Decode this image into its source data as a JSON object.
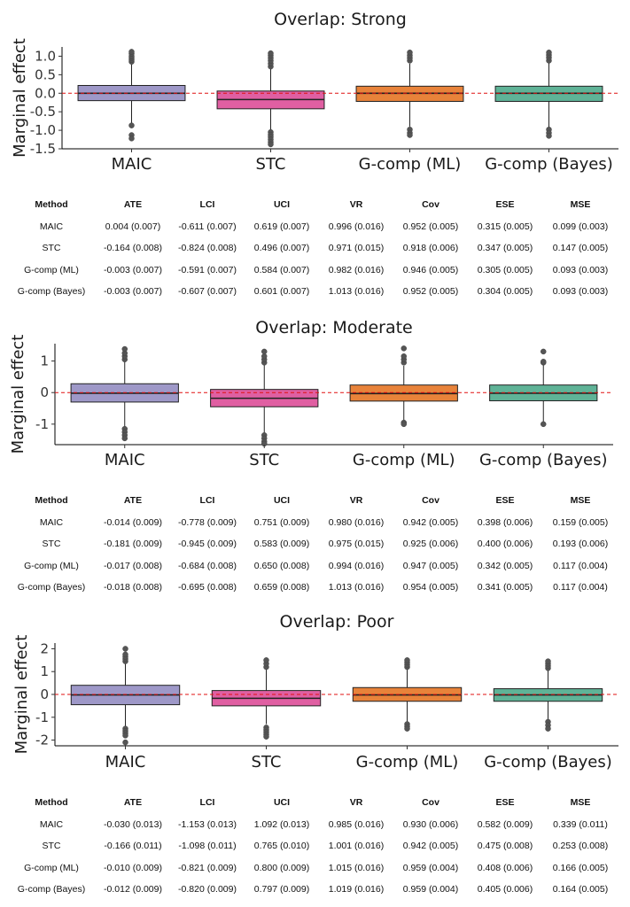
{
  "chart_data": [
    {
      "type": "box",
      "title": "Overlap: Strong",
      "ylabel": "Marginal effect",
      "ylim": [
        -1.5,
        1.25
      ],
      "yticks": [
        "-1.5",
        "-1.0",
        "-0.5",
        "0.0",
        "0.5",
        "1.0"
      ],
      "ytick_values": [
        -1.5,
        -1.0,
        -0.5,
        0.0,
        0.5,
        1.0
      ],
      "reference_line": 0,
      "categories": [
        "MAIC",
        "STC",
        "G-comp (ML)",
        "G-comp (Bayes)"
      ],
      "boxes": [
        {
          "category": "MAIC",
          "whisker_low": -0.82,
          "q1": -0.2,
          "median": 0.0,
          "q3": 0.21,
          "whisker_high": 0.82,
          "outliers": [
            0.85,
            0.9,
            0.95,
            1.0,
            1.07,
            1.12,
            -0.87,
            -1.13,
            -1.22
          ]
        },
        {
          "category": "STC",
          "whisker_low": -1.0,
          "q1": -0.42,
          "median": -0.17,
          "q3": 0.06,
          "whisker_high": 0.68,
          "outliers": [
            0.72,
            0.8,
            0.88,
            0.95,
            1.02,
            1.08,
            -1.05,
            -1.12,
            -1.18,
            -1.25,
            -1.32,
            -1.38
          ]
        },
        {
          "category": "G-comp (ML)",
          "whisker_low": -0.9,
          "q1": -0.22,
          "median": 0.0,
          "q3": 0.19,
          "whisker_high": 0.8,
          "outliers": [
            0.88,
            0.95,
            1.02,
            1.1,
            -0.98,
            -1.07,
            -1.13
          ]
        },
        {
          "category": "G-comp (Bayes)",
          "whisker_low": -0.92,
          "q1": -0.22,
          "median": 0.0,
          "q3": 0.19,
          "whisker_high": 0.82,
          "outliers": [
            0.88,
            0.96,
            1.03,
            1.1,
            -0.98,
            -1.07,
            -1.15
          ]
        }
      ],
      "colors": [
        "#9e98c8",
        "#e05fa2",
        "#e8833a",
        "#5fb397"
      ]
    },
    {
      "type": "box",
      "title": "Overlap: Moderate",
      "ylabel": "Marginal effect",
      "ylim": [
        -1.65,
        1.55
      ],
      "yticks": [
        "-1",
        "0",
        "1"
      ],
      "ytick_values": [
        -1,
        0,
        1
      ],
      "reference_line": 0,
      "categories": [
        "MAIC",
        "STC",
        "G-comp (ML)",
        "G-comp (Bayes)"
      ],
      "boxes": [
        {
          "category": "MAIC",
          "whisker_low": -1.1,
          "q1": -0.3,
          "median": -0.02,
          "q3": 0.28,
          "whisker_high": 1.0,
          "outliers": [
            1.05,
            1.15,
            1.25,
            1.38,
            -1.15,
            -1.25,
            -1.35,
            -1.45
          ]
        },
        {
          "category": "STC",
          "whisker_low": -1.3,
          "q1": -0.45,
          "median": -0.18,
          "q3": 0.1,
          "whisker_high": 0.9,
          "outliers": [
            0.95,
            1.05,
            1.15,
            1.3,
            -1.35,
            -1.45,
            -1.55,
            -1.62
          ]
        },
        {
          "category": "G-comp (ML)",
          "whisker_low": -0.9,
          "q1": -0.27,
          "median": -0.03,
          "q3": 0.24,
          "whisker_high": 0.85,
          "outliers": [
            0.95,
            1.05,
            1.15,
            1.4,
            -0.95,
            -1.0
          ]
        },
        {
          "category": "G-comp (Bayes)",
          "whisker_low": -0.95,
          "q1": -0.26,
          "median": -0.02,
          "q3": 0.24,
          "whisker_high": 0.9,
          "outliers": [
            0.95,
            0.98,
            1.3,
            -1.0
          ]
        }
      ],
      "colors": [
        "#9e98c8",
        "#e05fa2",
        "#e8833a",
        "#5fb397"
      ]
    },
    {
      "type": "box",
      "title": "Overlap: Poor",
      "ylabel": "Marginal effect",
      "ylim": [
        -2.25,
        2.25
      ],
      "yticks": [
        "-2",
        "-1",
        "0",
        "1",
        "2"
      ],
      "ytick_values": [
        -2,
        -1,
        0,
        1,
        2
      ],
      "reference_line": 0,
      "categories": [
        "MAIC",
        "STC",
        "G-comp (ML)",
        "G-comp (Bayes)"
      ],
      "boxes": [
        {
          "category": "MAIC",
          "whisker_low": -1.4,
          "q1": -0.45,
          "median": -0.02,
          "q3": 0.4,
          "whisker_high": 1.35,
          "outliers": [
            1.45,
            1.55,
            1.65,
            1.75,
            2.0,
            -1.5,
            -1.6,
            -1.7,
            -1.8,
            -2.1
          ]
        },
        {
          "category": "STC",
          "whisker_low": -1.3,
          "q1": -0.5,
          "median": -0.17,
          "q3": 0.17,
          "whisker_high": 1.1,
          "outliers": [
            1.2,
            1.35,
            1.5,
            -1.45,
            -1.55,
            -1.65,
            -1.75,
            -1.85
          ]
        },
        {
          "category": "G-comp (ML)",
          "whisker_low": -1.25,
          "q1": -0.3,
          "median": -0.02,
          "q3": 0.3,
          "whisker_high": 1.1,
          "outliers": [
            1.2,
            1.3,
            1.4,
            1.5,
            -1.3,
            -1.4,
            -1.5
          ]
        },
        {
          "category": "G-comp (Bayes)",
          "whisker_low": -1.15,
          "q1": -0.3,
          "median": -0.02,
          "q3": 0.25,
          "whisker_high": 1.05,
          "outliers": [
            1.15,
            1.25,
            1.35,
            1.45,
            -1.2,
            -1.35,
            -1.5
          ]
        }
      ],
      "colors": [
        "#9e98c8",
        "#e05fa2",
        "#e8833a",
        "#5fb397"
      ]
    }
  ],
  "tables": [
    {
      "headers": [
        "Method",
        "ATE",
        "LCI",
        "UCI",
        "VR",
        "Cov",
        "ESE",
        "MSE"
      ],
      "rows": [
        [
          "MAIC",
          "0.004 (0.007)",
          "-0.611 (0.007)",
          "0.619 (0.007)",
          "0.996 (0.016)",
          "0.952 (0.005)",
          "0.315 (0.005)",
          "0.099 (0.003)"
        ],
        [
          "STC",
          "-0.164 (0.008)",
          "-0.824 (0.008)",
          "0.496 (0.007)",
          "0.971 (0.015)",
          "0.918 (0.006)",
          "0.347 (0.005)",
          "0.147 (0.005)"
        ],
        [
          "G-comp (ML)",
          "-0.003 (0.007)",
          "-0.591 (0.007)",
          "0.584 (0.007)",
          "0.982 (0.016)",
          "0.946 (0.005)",
          "0.305 (0.005)",
          "0.093 (0.003)"
        ],
        [
          "G-comp (Bayes)",
          "-0.003 (0.007)",
          "-0.607 (0.007)",
          "0.601 (0.007)",
          "1.013 (0.016)",
          "0.952 (0.005)",
          "0.304 (0.005)",
          "0.093 (0.003)"
        ]
      ]
    },
    {
      "headers": [
        "Method",
        "ATE",
        "LCI",
        "UCI",
        "VR",
        "Cov",
        "ESE",
        "MSE"
      ],
      "rows": [
        [
          "MAIC",
          "-0.014 (0.009)",
          "-0.778 (0.009)",
          "0.751 (0.009)",
          "0.980 (0.016)",
          "0.942 (0.005)",
          "0.398 (0.006)",
          "0.159 (0.005)"
        ],
        [
          "STC",
          "-0.181 (0.009)",
          "-0.945 (0.009)",
          "0.583 (0.009)",
          "0.975 (0.015)",
          "0.925 (0.006)",
          "0.400 (0.006)",
          "0.193 (0.006)"
        ],
        [
          "G-comp (ML)",
          "-0.017 (0.008)",
          "-0.684 (0.008)",
          "0.650 (0.008)",
          "0.994 (0.016)",
          "0.947 (0.005)",
          "0.342 (0.005)",
          "0.117 (0.004)"
        ],
        [
          "G-comp (Bayes)",
          "-0.018 (0.008)",
          "-0.695 (0.008)",
          "0.659 (0.008)",
          "1.013 (0.016)",
          "0.954 (0.005)",
          "0.341 (0.005)",
          "0.117 (0.004)"
        ]
      ]
    },
    {
      "headers": [
        "Method",
        "ATE",
        "LCI",
        "UCI",
        "VR",
        "Cov",
        "ESE",
        "MSE"
      ],
      "rows": [
        [
          "MAIC",
          "-0.030 (0.013)",
          "-1.153 (0.013)",
          "1.092 (0.013)",
          "0.985 (0.016)",
          "0.930 (0.006)",
          "0.582 (0.009)",
          "0.339 (0.011)"
        ],
        [
          "STC",
          "-0.166 (0.011)",
          "-1.098 (0.011)",
          "0.765 (0.010)",
          "1.001 (0.016)",
          "0.942 (0.005)",
          "0.475 (0.008)",
          "0.253 (0.008)"
        ],
        [
          "G-comp (ML)",
          "-0.010 (0.009)",
          "-0.821 (0.009)",
          "0.800 (0.009)",
          "1.015 (0.016)",
          "0.959 (0.004)",
          "0.408 (0.006)",
          "0.166 (0.005)"
        ],
        [
          "G-comp (Bayes)",
          "-0.012 (0.009)",
          "-0.820 (0.009)",
          "0.797 (0.009)",
          "1.019 (0.016)",
          "0.959 (0.004)",
          "0.405 (0.006)",
          "0.164 (0.005)"
        ]
      ]
    }
  ]
}
